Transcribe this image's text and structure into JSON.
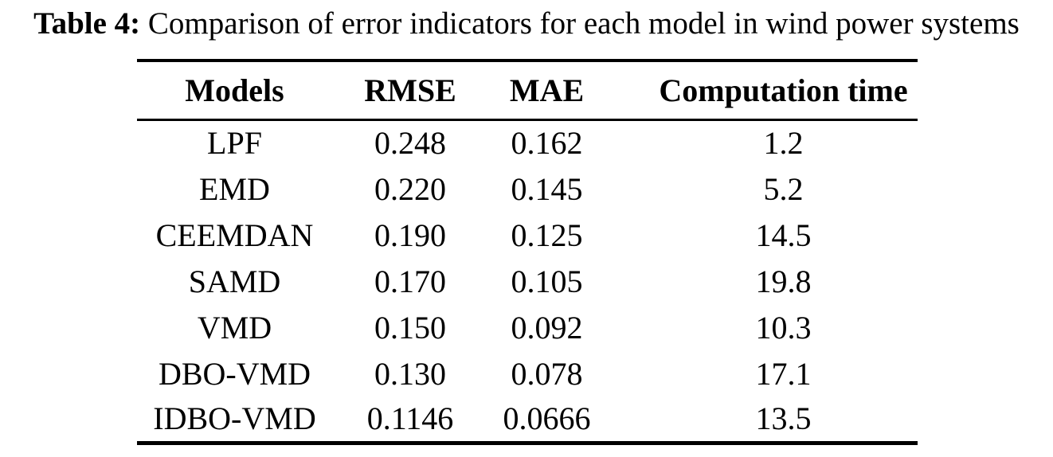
{
  "caption": {
    "label": "Table 4:",
    "text": "Comparison of error indicators for each model in wind power systems"
  },
  "table": {
    "columns": [
      "Models",
      "RMSE",
      "MAE",
      "Computation time"
    ],
    "rows": [
      [
        "LPF",
        "0.248",
        "0.162",
        "1.2"
      ],
      [
        "EMD",
        "0.220",
        "0.145",
        "5.2"
      ],
      [
        "CEEMDAN",
        "0.190",
        "0.125",
        "14.5"
      ],
      [
        "SAMD",
        "0.170",
        "0.105",
        "19.8"
      ],
      [
        "VMD",
        "0.150",
        "0.092",
        "10.3"
      ],
      [
        "DBO-VMD",
        "0.130",
        "0.078",
        "17.1"
      ],
      [
        "IDBO-VMD",
        "0.1146",
        "0.0666",
        "13.5"
      ]
    ]
  },
  "colors": {
    "background": "#ffffff",
    "text": "#000000",
    "rule": "#000000"
  }
}
